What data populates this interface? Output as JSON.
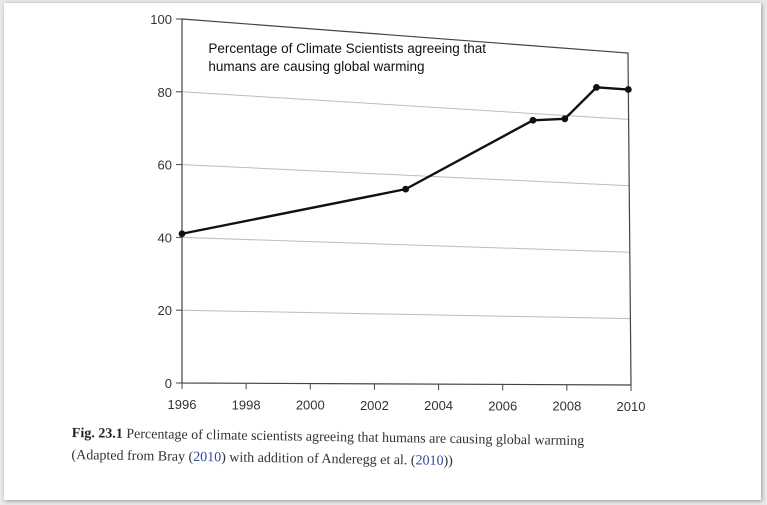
{
  "chart_data": {
    "type": "line",
    "title_lines": [
      "Percentage of Climate Scientists agreeing that",
      "humans are causing global warming"
    ],
    "x": [
      1996,
      2003,
      2007,
      2008,
      2009,
      2010
    ],
    "values": [
      41,
      56,
      78,
      79,
      89,
      89
    ],
    "xlim": [
      1996,
      2010
    ],
    "ylim": [
      0,
      100
    ],
    "x_ticks": [
      1996,
      1998,
      2000,
      2002,
      2004,
      2006,
      2008,
      2010
    ],
    "y_ticks": [
      0,
      20,
      40,
      60,
      80,
      100
    ],
    "xlabel": "",
    "ylabel": "",
    "grid": true
  },
  "caption": {
    "fig_label": "Fig. 23.1",
    "line1_text": "Percentage of climate scientists agreeing that humans are causing global warming",
    "line2_pre": "(Adapted from Bray (",
    "line2_cite1": "2010",
    "line2_mid": ") with addition of Anderegg et al. (",
    "line2_cite2": "2010",
    "line2_post": "))"
  },
  "colors": {
    "line": "#111111",
    "grid": "#bdbdbd",
    "axis": "#444444"
  }
}
